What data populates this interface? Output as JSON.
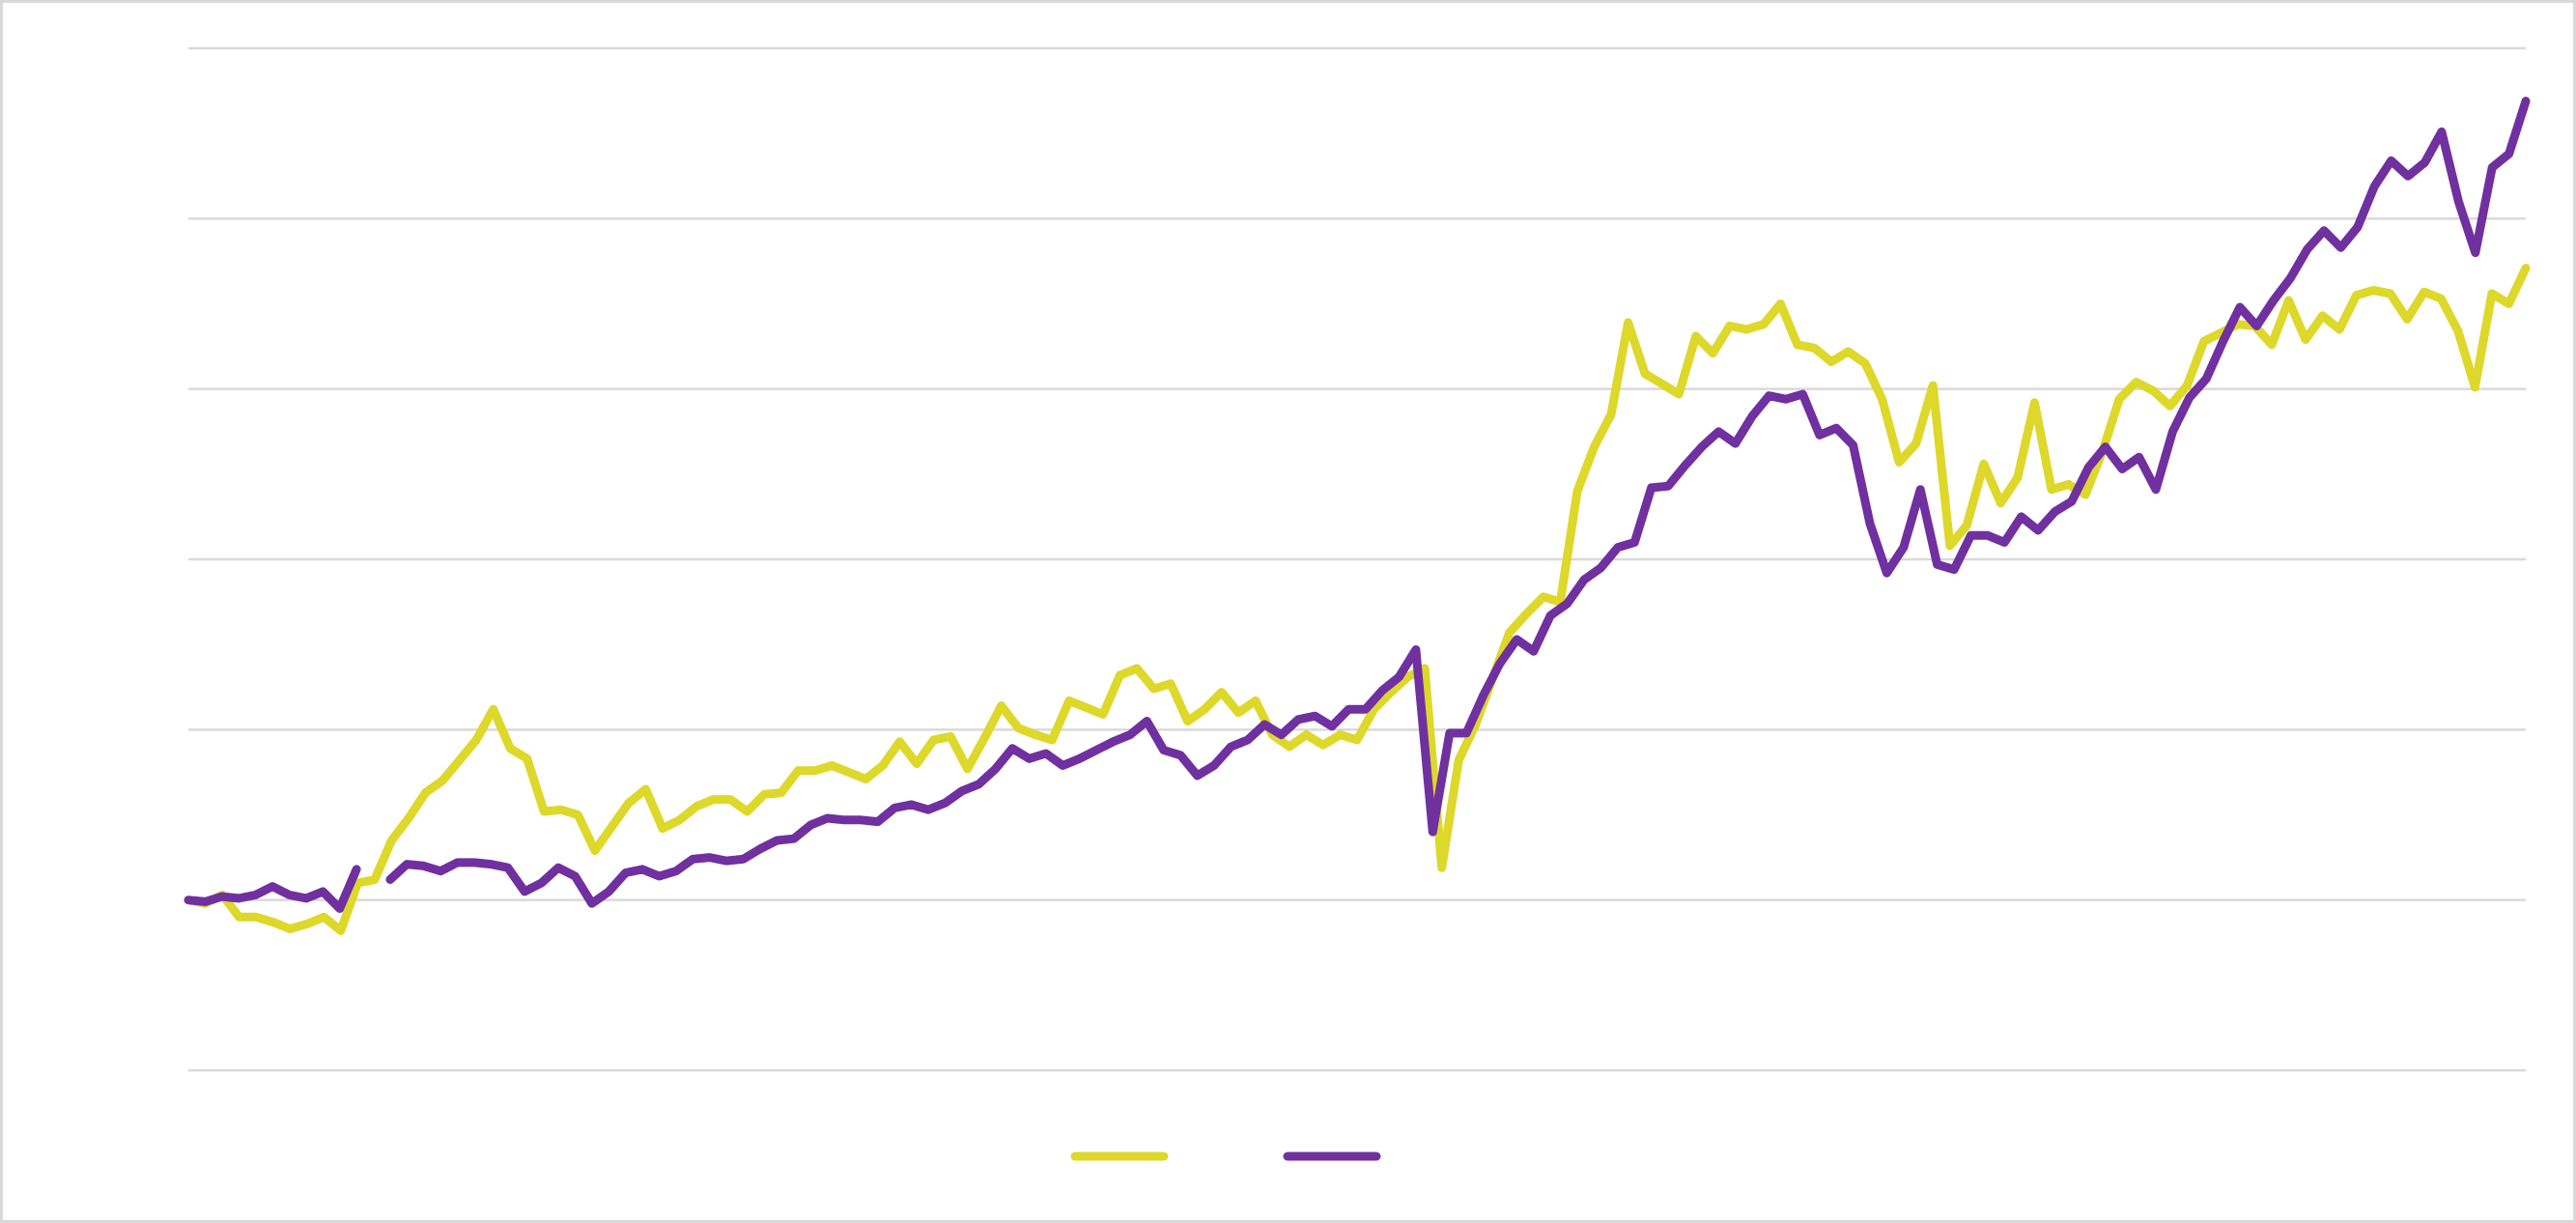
{
  "chart_data": {
    "type": "line",
    "title": "",
    "xlabel": "",
    "ylabel": "",
    "ylim": [
      -1,
      5
    ],
    "grid": true,
    "gridlines": [
      -1,
      0,
      1,
      2,
      3,
      4,
      5
    ],
    "legend": "bottom",
    "axis_labels_shown": false,
    "series": [
      {
        "color": "#DDD82A",
        "values": [
          0,
          -0.02,
          0.03,
          -0.1,
          -0.1,
          -0.13,
          -0.17,
          -0.14,
          -0.1,
          -0.18,
          0.1,
          0.12,
          0.35,
          0.48,
          0.63,
          0.7,
          0.82,
          0.94,
          1.12,
          0.89,
          0.83,
          0.52,
          0.53,
          0.5,
          0.29,
          0.43,
          0.57,
          0.65,
          0.42,
          0.47,
          0.55,
          0.59,
          0.59,
          0.52,
          0.62,
          0.63,
          0.76,
          0.76,
          0.79,
          0.75,
          0.71,
          0.79,
          0.93,
          0.8,
          0.94,
          0.96,
          0.77,
          0.95,
          1.14,
          1.01,
          0.97,
          0.94,
          1.17,
          1.13,
          1.09,
          1.32,
          1.36,
          1.24,
          1.27,
          1.05,
          1.12,
          1.22,
          1.1,
          1.17,
          0.97,
          0.9,
          0.97,
          0.91,
          0.97,
          0.94,
          1.12,
          1.22,
          1.31,
          1.36,
          0.19,
          0.82,
          1.03,
          1.3,
          1.57,
          1.68,
          1.78,
          1.75,
          2.4,
          2.66,
          2.85,
          3.39,
          3.09,
          3.03,
          2.97,
          3.31,
          3.21,
          3.37,
          3.35,
          3.38,
          3.5,
          3.26,
          3.24,
          3.16,
          3.22,
          3.15,
          2.94,
          2.57,
          2.68,
          3.02,
          2.08,
          2.2,
          2.56,
          2.33,
          2.48,
          2.92,
          2.41,
          2.44,
          2.38,
          2.63,
          2.94,
          3.04,
          2.99,
          2.9,
          3.02,
          3.28,
          3.33,
          3.38,
          3.37,
          3.26,
          3.52,
          3.29,
          3.43,
          3.35,
          3.55,
          3.58,
          3.56,
          3.41,
          3.57,
          3.53,
          3.34,
          3.01,
          3.56,
          3.5,
          3.71
        ]
      },
      {
        "color": "#7030A0",
        "values": [
          0,
          -0.01,
          0.02,
          0.01,
          0.03,
          0.08,
          0.03,
          0.01,
          0.05,
          -0.05,
          0.18,
          null,
          0.12,
          0.21,
          0.2,
          0.17,
          0.22,
          0.22,
          0.21,
          0.19,
          0.05,
          0.1,
          0.19,
          0.14,
          -0.02,
          0.05,
          0.16,
          0.18,
          0.14,
          0.17,
          0.24,
          0.25,
          0.23,
          0.24,
          0.3,
          0.35,
          0.36,
          0.44,
          0.48,
          0.47,
          0.47,
          0.46,
          0.54,
          0.56,
          0.53,
          0.57,
          0.64,
          0.68,
          0.77,
          0.89,
          0.83,
          0.86,
          0.79,
          0.83,
          0.88,
          0.93,
          0.97,
          1.05,
          0.88,
          0.85,
          0.73,
          0.79,
          0.9,
          0.94,
          1.03,
          0.97,
          1.06,
          1.08,
          1.02,
          1.12,
          1.12,
          1.23,
          1.31,
          1.47,
          0.4,
          0.98,
          0.98,
          1.2,
          1.39,
          1.53,
          1.46,
          1.67,
          1.74,
          1.88,
          1.95,
          2.07,
          2.1,
          2.42,
          2.43,
          2.55,
          2.66,
          2.75,
          2.68,
          2.84,
          2.96,
          2.94,
          2.97,
          2.73,
          2.77,
          2.67,
          2.21,
          1.92,
          2.07,
          2.41,
          1.97,
          1.94,
          2.14,
          2.14,
          2.1,
          2.25,
          2.17,
          2.28,
          2.34,
          2.54,
          2.66,
          2.53,
          2.6,
          2.41,
          2.75,
          2.95,
          3.06,
          3.28,
          3.48,
          3.37,
          3.52,
          3.65,
          3.82,
          3.93,
          3.83,
          3.95,
          4.19,
          4.34,
          4.25,
          4.33,
          4.51,
          4.1,
          3.8,
          4.3,
          4.38,
          4.69
        ]
      }
    ]
  }
}
